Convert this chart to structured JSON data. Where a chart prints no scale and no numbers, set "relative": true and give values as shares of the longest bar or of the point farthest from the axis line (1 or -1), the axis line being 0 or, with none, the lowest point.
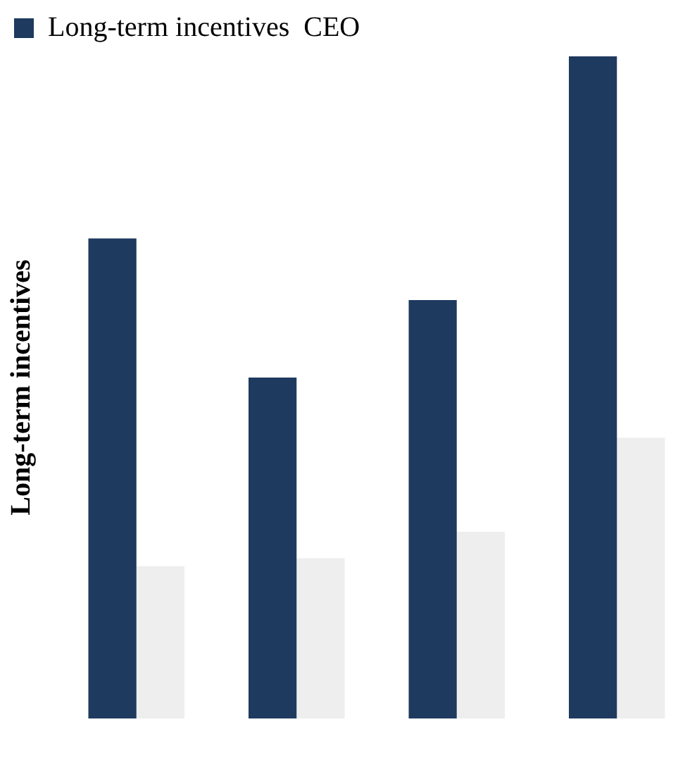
{
  "chart_data": {
    "type": "bar",
    "relative": true,
    "ylabel": "Long-term incentives",
    "categories": [
      null,
      null,
      null,
      null
    ],
    "grid": false,
    "legend": "top left",
    "series": [
      {
        "name": "Long-term incentives  CEO",
        "color": "#1f3a5f",
        "values": [
          0.725,
          0.515,
          0.632,
          1
        ]
      },
      {
        "color": "#eeeeee",
        "values": [
          0.23,
          0.242,
          0.282,
          0.424
        ]
      }
    ]
  }
}
